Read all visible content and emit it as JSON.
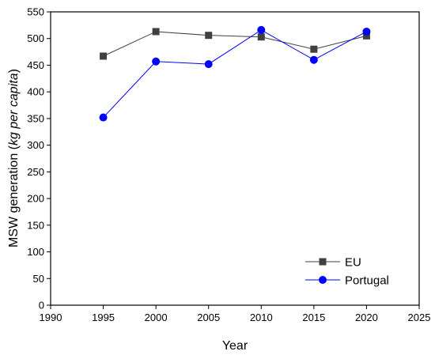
{
  "chart_data": {
    "type": "line",
    "xlabel": "Year",
    "ylabel_plain": "MSW generation (",
    "ylabel_italic": "kg per capita",
    "ylabel_close": ")",
    "xlim": [
      1990,
      2025
    ],
    "ylim": [
      0,
      550
    ],
    "x_ticks": [
      1990,
      1995,
      2000,
      2005,
      2010,
      2015,
      2020,
      2025
    ],
    "y_ticks": [
      0,
      50,
      100,
      150,
      200,
      250,
      300,
      350,
      400,
      450,
      500,
      550
    ],
    "legend_position": "bottom-right",
    "grid": false,
    "x": [
      1995,
      2000,
      2005,
      2010,
      2015,
      2020
    ],
    "series": [
      {
        "name": "EU",
        "values": [
          467,
          513,
          506,
          503,
          480,
          505
        ],
        "color": "#404040",
        "marker": "square"
      },
      {
        "name": "Portugal",
        "values": [
          352,
          457,
          452,
          516,
          460,
          513
        ],
        "color": "#0000ff",
        "marker": "circle"
      }
    ]
  }
}
